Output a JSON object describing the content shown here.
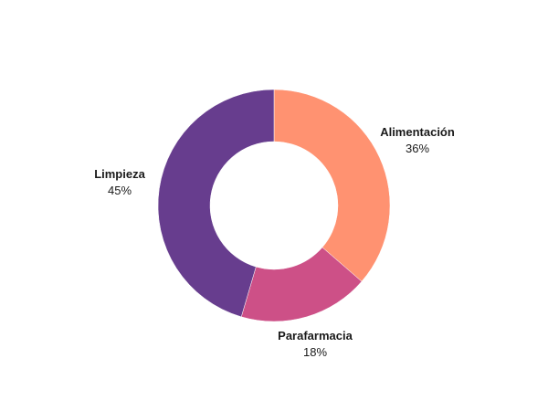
{
  "chart_data": {
    "type": "pie",
    "variant": "donut",
    "title": "",
    "categories": [
      "Alimentación",
      "Parafarmacia",
      "Limpieza"
    ],
    "values": [
      36,
      18,
      45
    ],
    "labels": [
      "36%",
      "18%",
      "45%"
    ],
    "colors": [
      "#ff9271",
      "#cd5087",
      "#673d8e"
    ],
    "start": "top, clockwise",
    "legend": "none (labels beside slices)"
  }
}
